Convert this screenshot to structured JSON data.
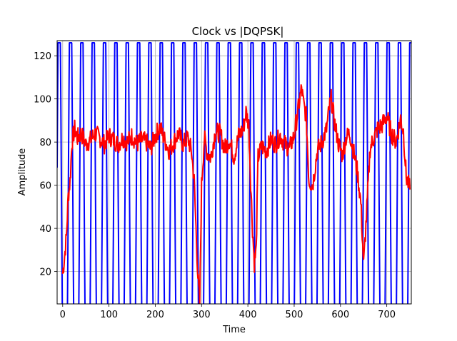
{
  "chart_data": {
    "type": "line",
    "title": "Clock vs |DQPSK|",
    "xlabel": "Time",
    "ylabel": "Amplitude",
    "xlim": [
      -12,
      753
    ],
    "ylim": [
      5,
      127
    ],
    "x_ticks": [
      0,
      100,
      200,
      300,
      400,
      500,
      600,
      700
    ],
    "y_ticks": [
      20,
      40,
      60,
      80,
      100,
      120
    ],
    "grid": true,
    "legend": "none",
    "series": [
      {
        "color": "#0000ff",
        "style": "periodic-pulse",
        "period": 24.5,
        "phase": 17,
        "peak": 126,
        "min": 0
      },
      {
        "color": "#ff0000",
        "style": "noisy",
        "x": [
          0,
          4,
          8,
          12,
          16,
          20,
          26,
          32,
          40,
          50,
          60,
          70,
          80,
          90,
          100,
          110,
          120,
          130,
          140,
          150,
          160,
          170,
          180,
          190,
          200,
          210,
          220,
          230,
          240,
          250,
          260,
          270,
          278,
          284,
          288,
          292,
          296,
          300,
          306,
          312,
          320,
          330,
          340,
          350,
          360,
          370,
          380,
          390,
          396,
          402,
          406,
          410,
          414,
          418,
          422,
          430,
          440,
          450,
          460,
          470,
          480,
          490,
          500,
          510,
          516,
          520,
          526,
          532,
          540,
          550,
          560,
          570,
          576,
          580,
          588,
          596,
          604,
          612,
          620,
          628,
          636,
          644,
          650,
          656,
          664,
          672,
          680,
          690,
          700,
          710,
          720,
          730,
          736,
          742,
          750
        ],
        "y": [
          19,
          27,
          36,
          55,
          62,
          80,
          86,
          82,
          84,
          79,
          81,
          84,
          82,
          79,
          83,
          81,
          79,
          82,
          80,
          83,
          79,
          81,
          80,
          77,
          83,
          87,
          81,
          76,
          80,
          84,
          79,
          82,
          76,
          62,
          40,
          18,
          5,
          60,
          82,
          75,
          73,
          85,
          84,
          77,
          81,
          73,
          83,
          86,
          94,
          88,
          62,
          40,
          24,
          30,
          73,
          78,
          76,
          81,
          79,
          83,
          79,
          77,
          83,
          97,
          105,
          98,
          92,
          62,
          60,
          76,
          80,
          86,
          96,
          100,
          88,
          79,
          74,
          82,
          84,
          76,
          67,
          52,
          23,
          45,
          77,
          82,
          86,
          88,
          92,
          84,
          80,
          91,
          85,
          64,
          58
        ]
      }
    ]
  }
}
